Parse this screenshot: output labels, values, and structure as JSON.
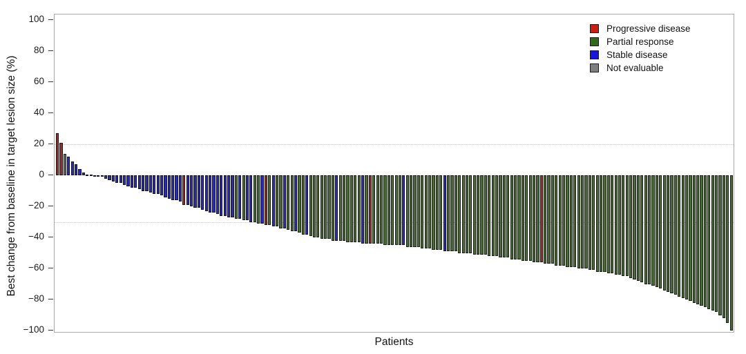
{
  "chart_data": {
    "type": "bar",
    "subtype": "waterfall",
    "title": "",
    "xlabel": "Patients",
    "ylabel": "Best change from baseline in target lesion size (%)",
    "ylim": [
      -100,
      100
    ],
    "ytick_values": [
      100,
      80,
      60,
      40,
      20,
      0,
      -20,
      -40,
      -60,
      -80,
      -100
    ],
    "ytick_labels": [
      "100",
      "80",
      "60",
      "40",
      "20",
      "0",
      "−20",
      "−40",
      "−60",
      "−80",
      "−100"
    ],
    "reference_lines": [
      20,
      -30
    ],
    "grid": "dotted reference lines at +20 and -30 only",
    "legend_position": "top-right inside plot",
    "legend": [
      {
        "label": "Progressive disease",
        "status": "PD",
        "color": "#c81e14"
      },
      {
        "label": "Partial response",
        "status": "PR",
        "color": "#2f6a1c"
      },
      {
        "label": "Stable disease",
        "status": "SD",
        "color": "#1616dc"
      },
      {
        "label": "Not evaluable",
        "status": "NE",
        "color": "#7f7f7f"
      }
    ],
    "bar_colors": {
      "PD": "#8e342e",
      "PR": "#4a6b38",
      "SD": "#2d2daa",
      "NE": "#6f6f6f"
    },
    "bars": {
      "values": [
        27,
        21,
        14,
        12,
        9,
        7,
        4,
        2,
        0.5,
        0.3,
        -0.3,
        -0.5,
        -1,
        -2,
        -3,
        -4,
        -5,
        -5,
        -6,
        -7,
        -8,
        -8,
        -9,
        -10,
        -10,
        -11,
        -12,
        -12,
        -13,
        -14,
        -15,
        -16,
        -16,
        -17,
        -19,
        -19,
        -20,
        -21,
        -21,
        -22,
        -23,
        -24,
        -24,
        -25,
        -26,
        -26,
        -27,
        -27,
        -28,
        -28,
        -29,
        -29,
        -30,
        -30,
        -31,
        -31,
        -32,
        -32,
        -33,
        -33,
        -34,
        -34,
        -35,
        -36,
        -36,
        -37,
        -38,
        -38,
        -39,
        -40,
        -40,
        -41,
        -41,
        -41,
        -42,
        -42,
        -42,
        -42,
        -43,
        -43,
        -43,
        -43,
        -44,
        -44,
        -44,
        -44,
        -44,
        -44,
        -45,
        -45,
        -45,
        -45,
        -45,
        -45,
        -46,
        -46,
        -46,
        -46,
        -47,
        -47,
        -47,
        -48,
        -48,
        -48,
        -49,
        -49,
        -49,
        -49,
        -50,
        -50,
        -50,
        -50,
        -51,
        -51,
        -51,
        -51,
        -52,
        -52,
        -52,
        -53,
        -53,
        -53,
        -54,
        -54,
        -54,
        -55,
        -55,
        -55,
        -56,
        -56,
        -56,
        -57,
        -57,
        -57,
        -58,
        -58,
        -58,
        -59,
        -59,
        -59,
        -60,
        -60,
        -60,
        -61,
        -61,
        -62,
        -62,
        -62,
        -63,
        -63,
        -64,
        -64,
        -65,
        -65,
        -66,
        -67,
        -68,
        -69,
        -70,
        -70,
        -71,
        -72,
        -73,
        -74,
        -75,
        -76,
        -77,
        -78,
        -79,
        -80,
        -81,
        -82,
        -83,
        -84,
        -85,
        -86,
        -87,
        -88,
        -90,
        -92,
        -95,
        -100
      ],
      "status": [
        "PD",
        "PD",
        "NE",
        "SD",
        "SD",
        "SD",
        "SD",
        "SD",
        "SD",
        "SD",
        "SD",
        "SD",
        "SD",
        "SD",
        "SD",
        "SD",
        "SD",
        "SD",
        "SD",
        "SD",
        "SD",
        "SD",
        "SD",
        "SD",
        "SD",
        "SD",
        "SD",
        "SD",
        "SD",
        "SD",
        "SD",
        "SD",
        "SD",
        "SD",
        "PD",
        "SD",
        "SD",
        "SD",
        "SD",
        "SD",
        "SD",
        "SD",
        "SD",
        "SD",
        "SD",
        "SD",
        "SD",
        "SD",
        "PR",
        "SD",
        "PR",
        "SD",
        "SD",
        "PR",
        "PR",
        "SD",
        "PD",
        "PR",
        "SD",
        "PR",
        "PR",
        "SD",
        "PR",
        "PR",
        "SD",
        "PR",
        "PR",
        "SD",
        "PR",
        "PR",
        "PR",
        "PR",
        "PR",
        "PR",
        "PR",
        "SD",
        "PR",
        "PR",
        "PR",
        "PR",
        "PR",
        "PR",
        "SD",
        "PR",
        "PD",
        "PR",
        "PR",
        "PR",
        "PR",
        "PR",
        "PR",
        "PR",
        "PR",
        "SD",
        "PR",
        "PR",
        "PR",
        "PR",
        "PR",
        "PR",
        "PR",
        "PR",
        "PR",
        "PR",
        "SD",
        "PR",
        "PR",
        "PR",
        "PR",
        "PR",
        "PR",
        "PR",
        "PR",
        "PR",
        "PR",
        "PR",
        "PR",
        "PR",
        "PR",
        "PR",
        "PR",
        "PR",
        "PR",
        "PR",
        "PR",
        "PR",
        "PR",
        "PR",
        "PR",
        "PR",
        "PD",
        "PR",
        "PR",
        "PR",
        "PR",
        "PR",
        "PR",
        "PR",
        "PR",
        "PR",
        "PR",
        "PR",
        "PR",
        "PR",
        "PR",
        "PR",
        "PR",
        "PR",
        "PR",
        "PR",
        "PR",
        "PR",
        "PR",
        "PR",
        "PR",
        "PR",
        "PR",
        "PR",
        "PR",
        "PR",
        "PR",
        "PR",
        "PR",
        "PR",
        "PR",
        "PR",
        "PR",
        "PR",
        "PR",
        "PR",
        "PR",
        "PR",
        "PR",
        "PR",
        "PR",
        "PR",
        "PR",
        "PR",
        "PR",
        "PR",
        "PR",
        "PR"
      ]
    }
  }
}
